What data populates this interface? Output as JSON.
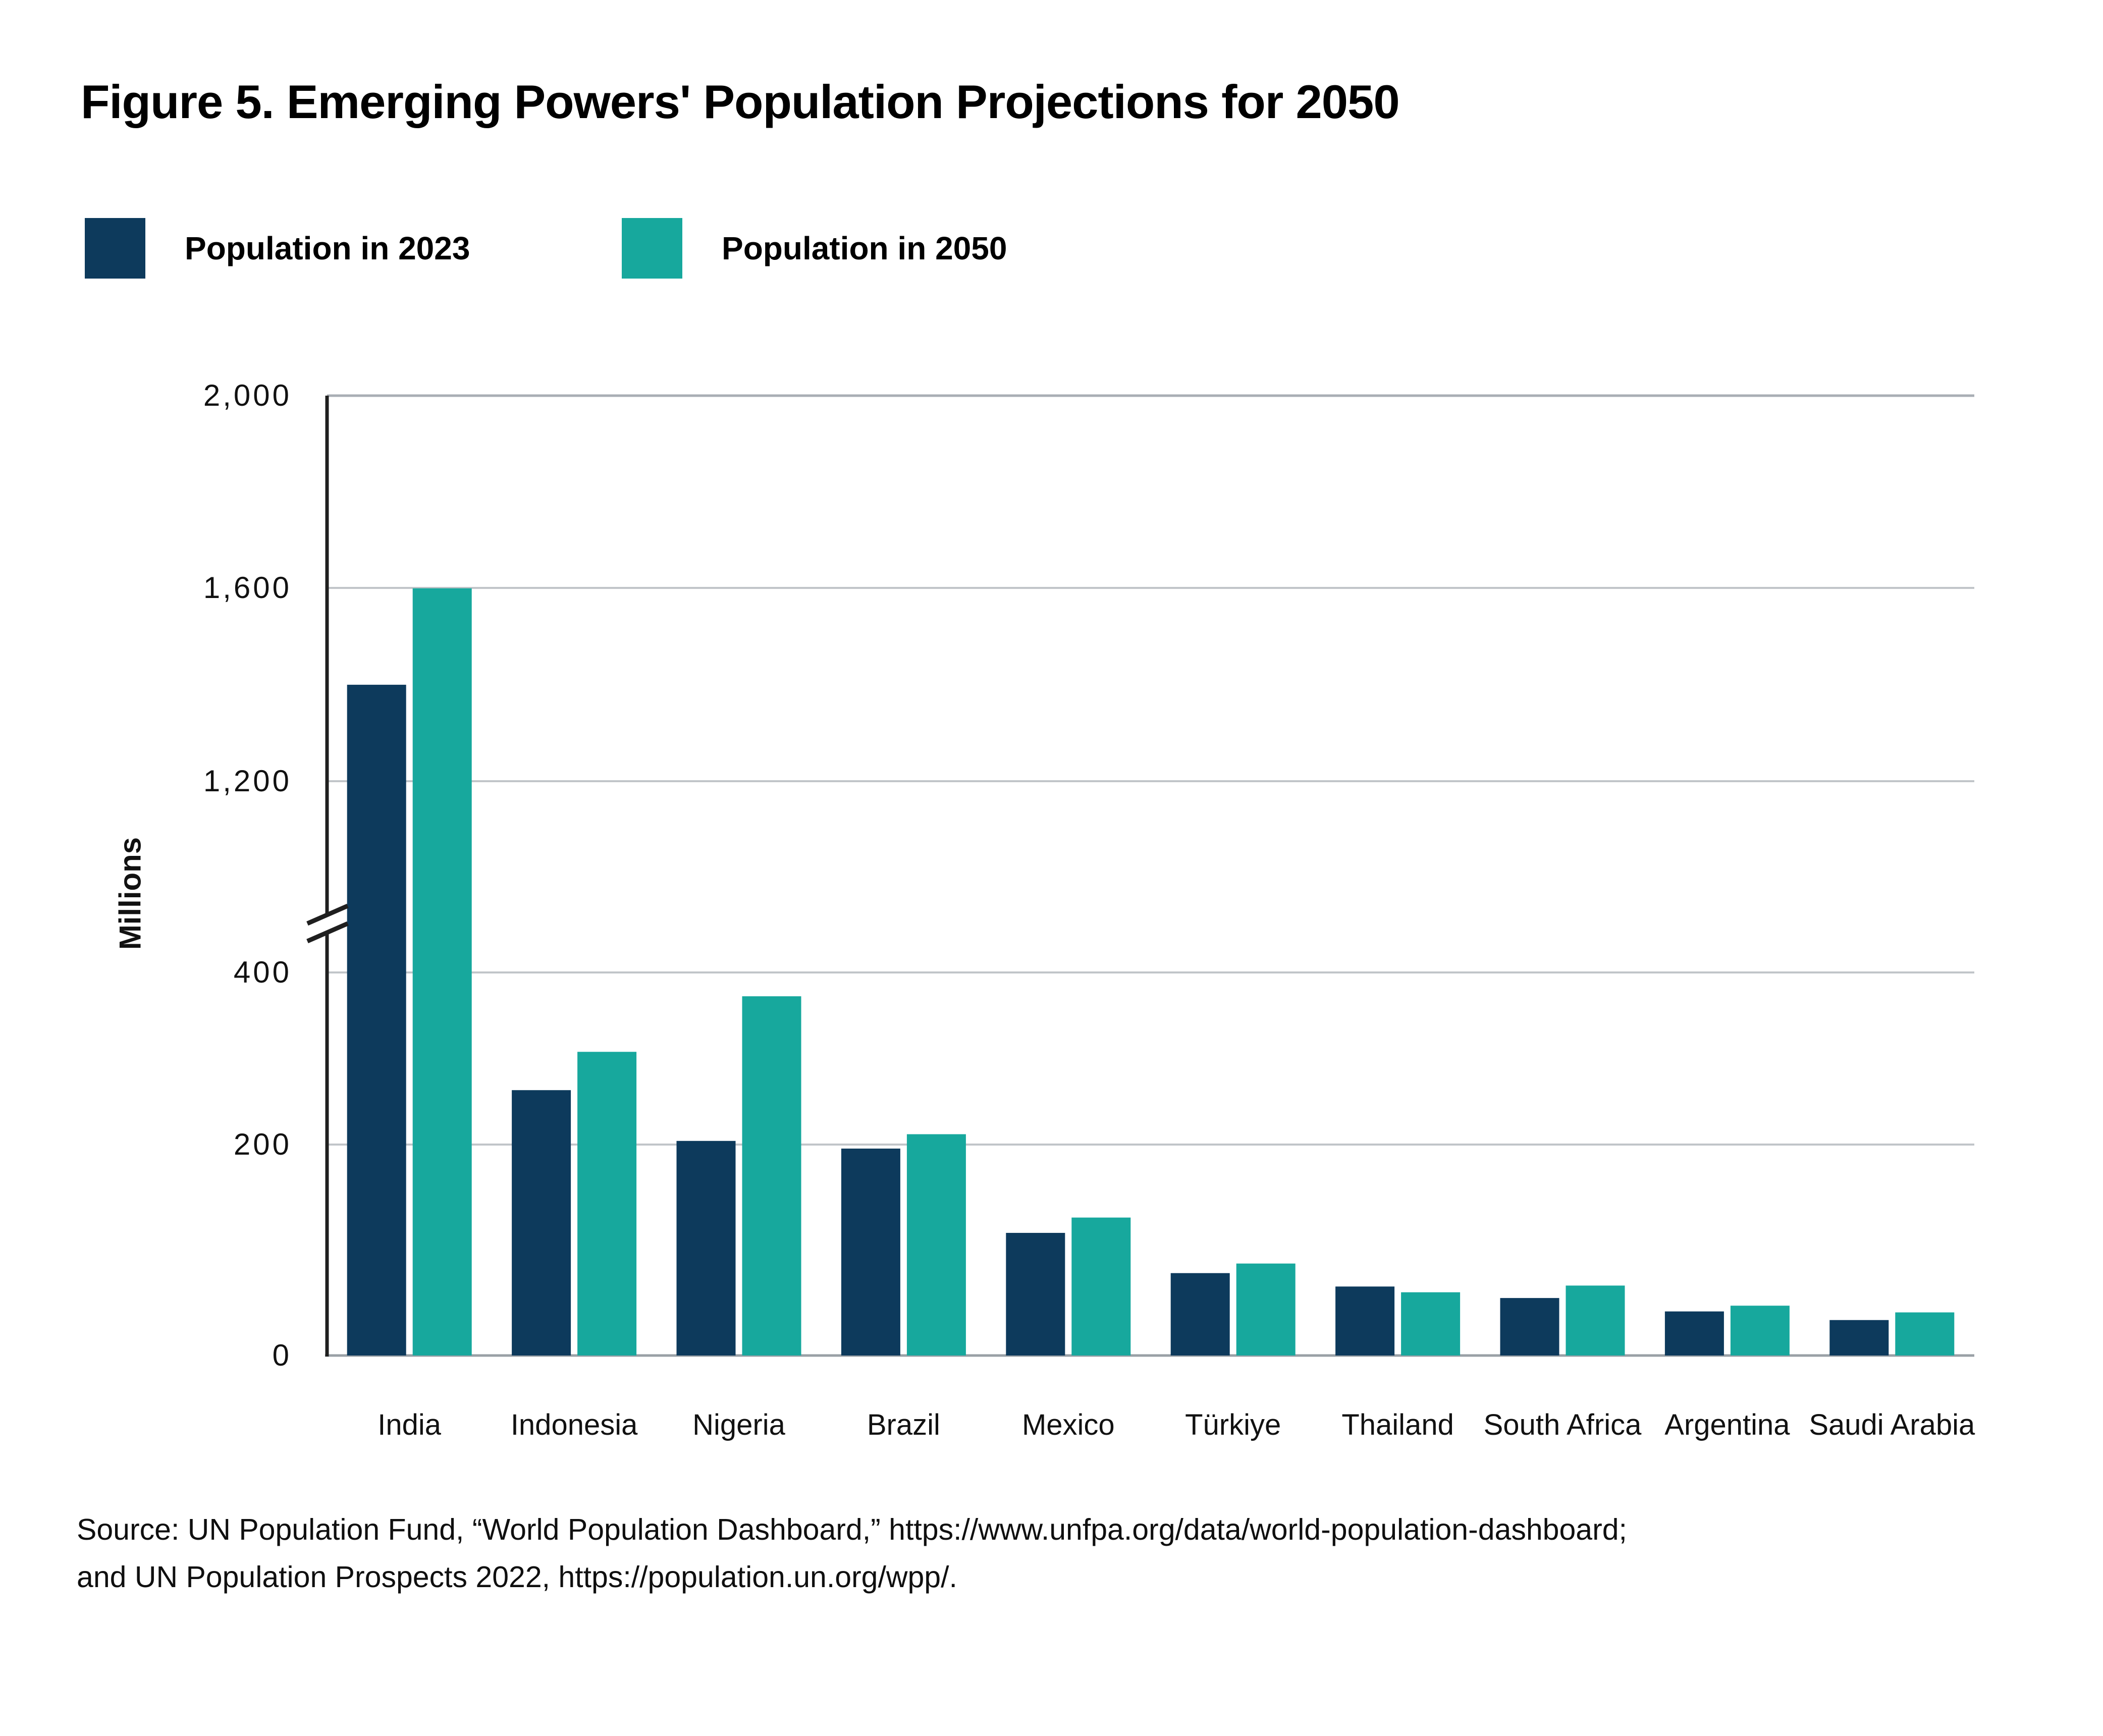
{
  "title": "Figure 5. Emerging Powers' Population Projections for 2050",
  "legend": {
    "items": [
      {
        "label": "Population in 2023",
        "color": "#0D3A5C"
      },
      {
        "label": "Population in 2050",
        "color": "#17A89D"
      }
    ]
  },
  "y_axis": {
    "title": "Millions",
    "ticks": [
      {
        "value": 0,
        "label": "0"
      },
      {
        "value": 200,
        "label": "200"
      },
      {
        "value": 400,
        "label": "400"
      },
      {
        "value": 1200,
        "label": "1,200"
      },
      {
        "value": 1600,
        "label": "1,600"
      },
      {
        "value": 2000,
        "label": "2,000"
      }
    ]
  },
  "source": {
    "line1": "Source: UN Population Fund, “World Population Dashboard,” https://www.unfpa.org/data/world-population-dashboard;",
    "line2": "and UN Population Prospects 2022,  https://population.un.org/wpp/."
  },
  "chart_data": {
    "type": "bar",
    "title": "Figure 5. Emerging Powers' Population Projections for 2050",
    "categories": [
      "India",
      "Indonesia",
      "Nigeria",
      "Brazil",
      "Mexico",
      "Türkiye",
      "Thailand",
      "South Africa",
      "Argentina",
      "Saudi Arabia"
    ],
    "series": [
      {
        "name": "Population in 2023",
        "color": "#0D3A5C",
        "values": [
          1400,
          277,
          224,
          216,
          128,
          86,
          72,
          60,
          46,
          37
        ]
      },
      {
        "name": "Population in 2050",
        "color": "#17A89D",
        "values": [
          1600,
          317,
          375,
          231,
          144,
          96,
          66,
          73,
          52,
          45
        ]
      }
    ],
    "ylabel": "Millions",
    "ylim": [
      0,
      2000
    ],
    "yticks": [
      0,
      200,
      400,
      1200,
      1600,
      2000
    ],
    "axis_break": [
      400,
      1200
    ],
    "grid": "horizontal",
    "legend_position": "top-left",
    "units": "millions of people"
  }
}
